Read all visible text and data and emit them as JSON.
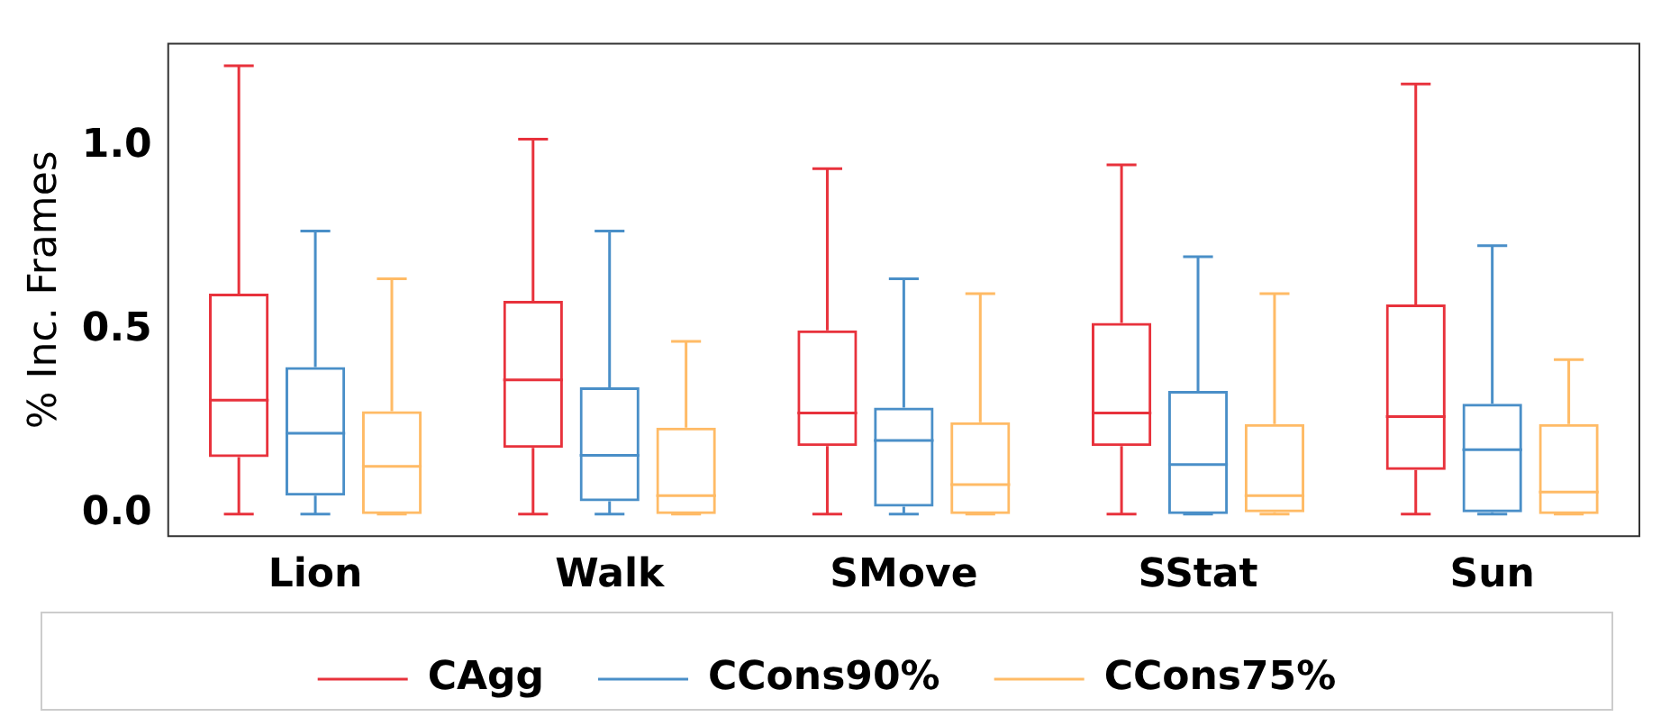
{
  "chart_data": {
    "type": "box",
    "ylabel": "% Inc. Frames",
    "categories": [
      "Lion",
      "Walk",
      "SMove",
      "SStat",
      "Sun"
    ],
    "ylim": [
      -0.06,
      1.28
    ],
    "yticks": [
      {
        "value": 0,
        "label": "0.0"
      },
      {
        "value": 0.5,
        "label": "0.5"
      },
      {
        "value": 1,
        "label": "1.0"
      }
    ],
    "grid": false,
    "legend": "bottom",
    "series": [
      {
        "name": "CAgg",
        "color": "#e8323c",
        "boxes": [
          {
            "low": 0,
            "q1": 0.155,
            "median": 0.31,
            "q3": 0.6,
            "high": 1.22
          },
          {
            "low": 0,
            "q1": 0.18,
            "median": 0.365,
            "q3": 0.58,
            "high": 1.02
          },
          {
            "low": 0,
            "q1": 0.185,
            "median": 0.275,
            "q3": 0.5,
            "high": 0.94
          },
          {
            "low": 0,
            "q1": 0.185,
            "median": 0.275,
            "q3": 0.52,
            "high": 0.95
          },
          {
            "low": 0,
            "q1": 0.12,
            "median": 0.265,
            "q3": 0.57,
            "high": 1.17
          }
        ]
      },
      {
        "name": "CCons90%",
        "color": "#4a8fc8",
        "boxes": [
          {
            "low": 0,
            "q1": 0.05,
            "median": 0.22,
            "q3": 0.4,
            "high": 0.77
          },
          {
            "low": 0,
            "q1": 0.035,
            "median": 0.16,
            "q3": 0.345,
            "high": 0.77
          },
          {
            "low": 0,
            "q1": 0.02,
            "median": 0.2,
            "q3": 0.29,
            "high": 0.64
          },
          {
            "low": 0,
            "q1": 0,
            "median": 0.135,
            "q3": 0.335,
            "high": 0.7
          },
          {
            "low": 0,
            "q1": 0.005,
            "median": 0.175,
            "q3": 0.3,
            "high": 0.73
          }
        ]
      },
      {
        "name": "CCons75%",
        "color": "#ffbb66",
        "boxes": [
          {
            "low": 0,
            "q1": 0,
            "median": 0.13,
            "q3": 0.28,
            "high": 0.64
          },
          {
            "low": 0,
            "q1": 0,
            "median": 0.05,
            "q3": 0.235,
            "high": 0.47
          },
          {
            "low": 0,
            "q1": 0,
            "median": 0.08,
            "q3": 0.25,
            "high": 0.6
          },
          {
            "low": 0,
            "q1": 0.005,
            "median": 0.05,
            "q3": 0.245,
            "high": 0.6
          },
          {
            "low": 0,
            "q1": 0,
            "median": 0.06,
            "q3": 0.245,
            "high": 0.42
          }
        ]
      }
    ]
  }
}
